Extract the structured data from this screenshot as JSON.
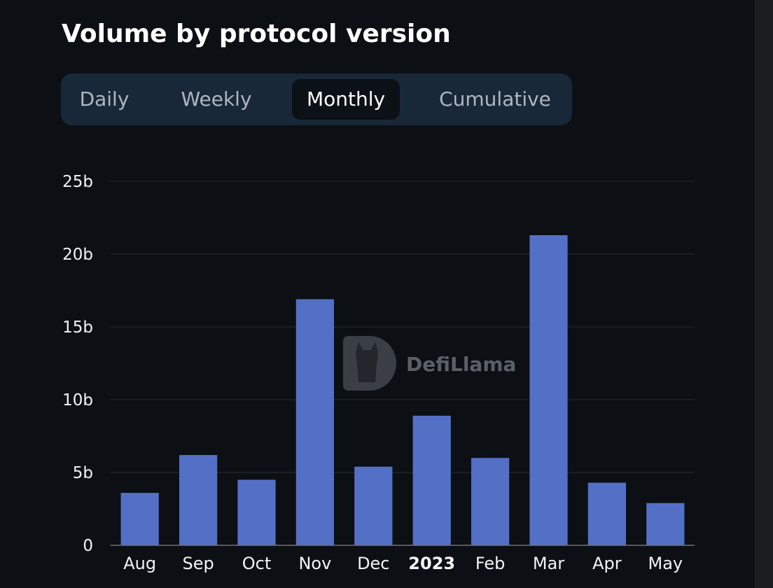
{
  "tabs": [
    {
      "label": "Daily",
      "active": false
    },
    {
      "label": "Weekly",
      "active": false
    },
    {
      "label": "Monthly",
      "active": true
    },
    {
      "label": "Cumulative",
      "active": false
    }
  ],
  "watermark": {
    "text": "DefiLlama",
    "icon": "llama-logo-icon"
  },
  "colors": {
    "bar": "#5470c6",
    "grid": "#262c33",
    "axis": "#6e7079"
  },
  "chart_data": {
    "type": "bar",
    "title": "Volume by protocol version",
    "categories": [
      "Aug",
      "Sep",
      "Oct",
      "Nov",
      "Dec",
      "2023",
      "Feb",
      "Mar",
      "Apr",
      "May"
    ],
    "bold_categories": [
      "2023"
    ],
    "values": [
      3.6,
      6.2,
      4.5,
      16.9,
      5.4,
      8.9,
      6.0,
      21.3,
      4.3,
      2.9
    ],
    "unit_suffix": "b",
    "ylim": [
      0,
      25
    ],
    "yticks": [
      "0",
      "5b",
      "10b",
      "15b",
      "20b",
      "25b"
    ],
    "ytick_values": [
      0,
      5,
      10,
      15,
      20,
      25
    ],
    "grid": true,
    "legend": "none",
    "xlabel": "",
    "ylabel": ""
  }
}
